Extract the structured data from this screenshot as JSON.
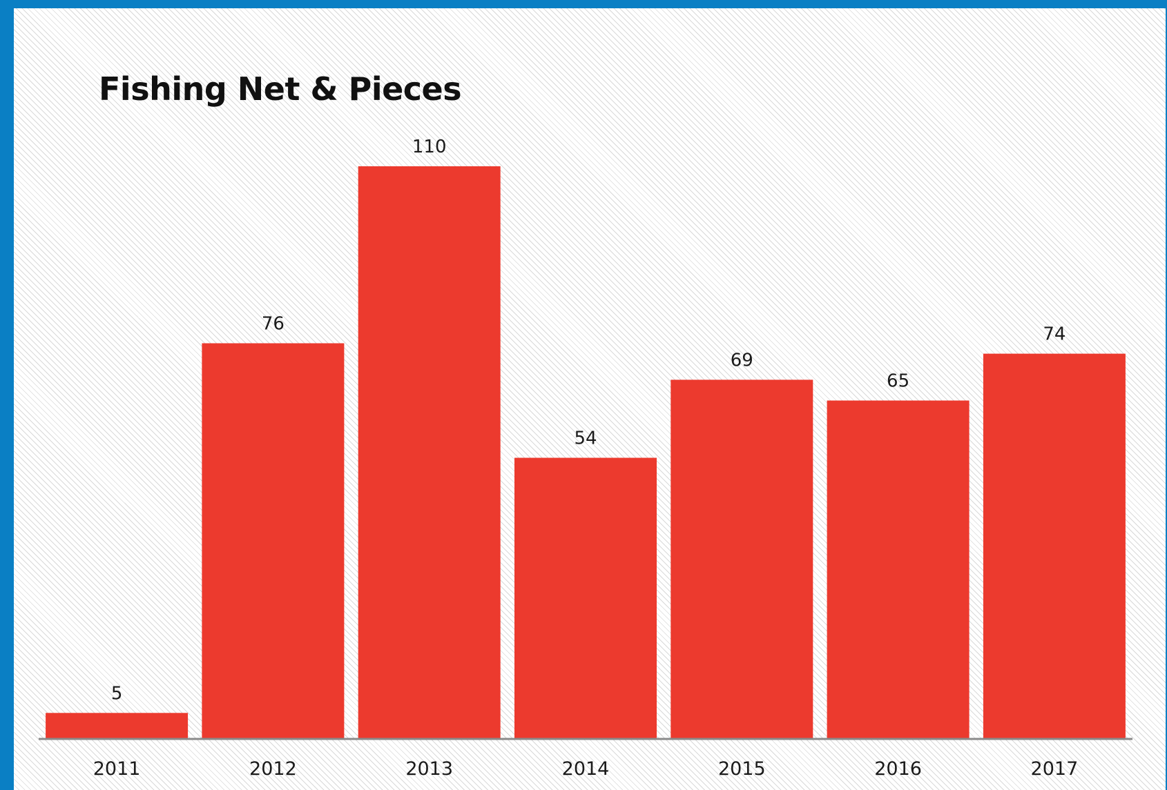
{
  "chart_data": {
    "type": "bar",
    "title": "Fishing Net & Pieces",
    "xlabel": "",
    "ylabel": "",
    "categories": [
      "2011",
      "2012",
      "2013",
      "2014",
      "2015",
      "2016",
      "2017"
    ],
    "values": [
      5,
      76,
      110,
      54,
      69,
      65,
      74
    ],
    "ylim": [
      0,
      110
    ],
    "grid": false,
    "legend": "none",
    "data_labels": true,
    "bar_color": "#ec3a2e",
    "frame_color": "#0a7fc4"
  }
}
